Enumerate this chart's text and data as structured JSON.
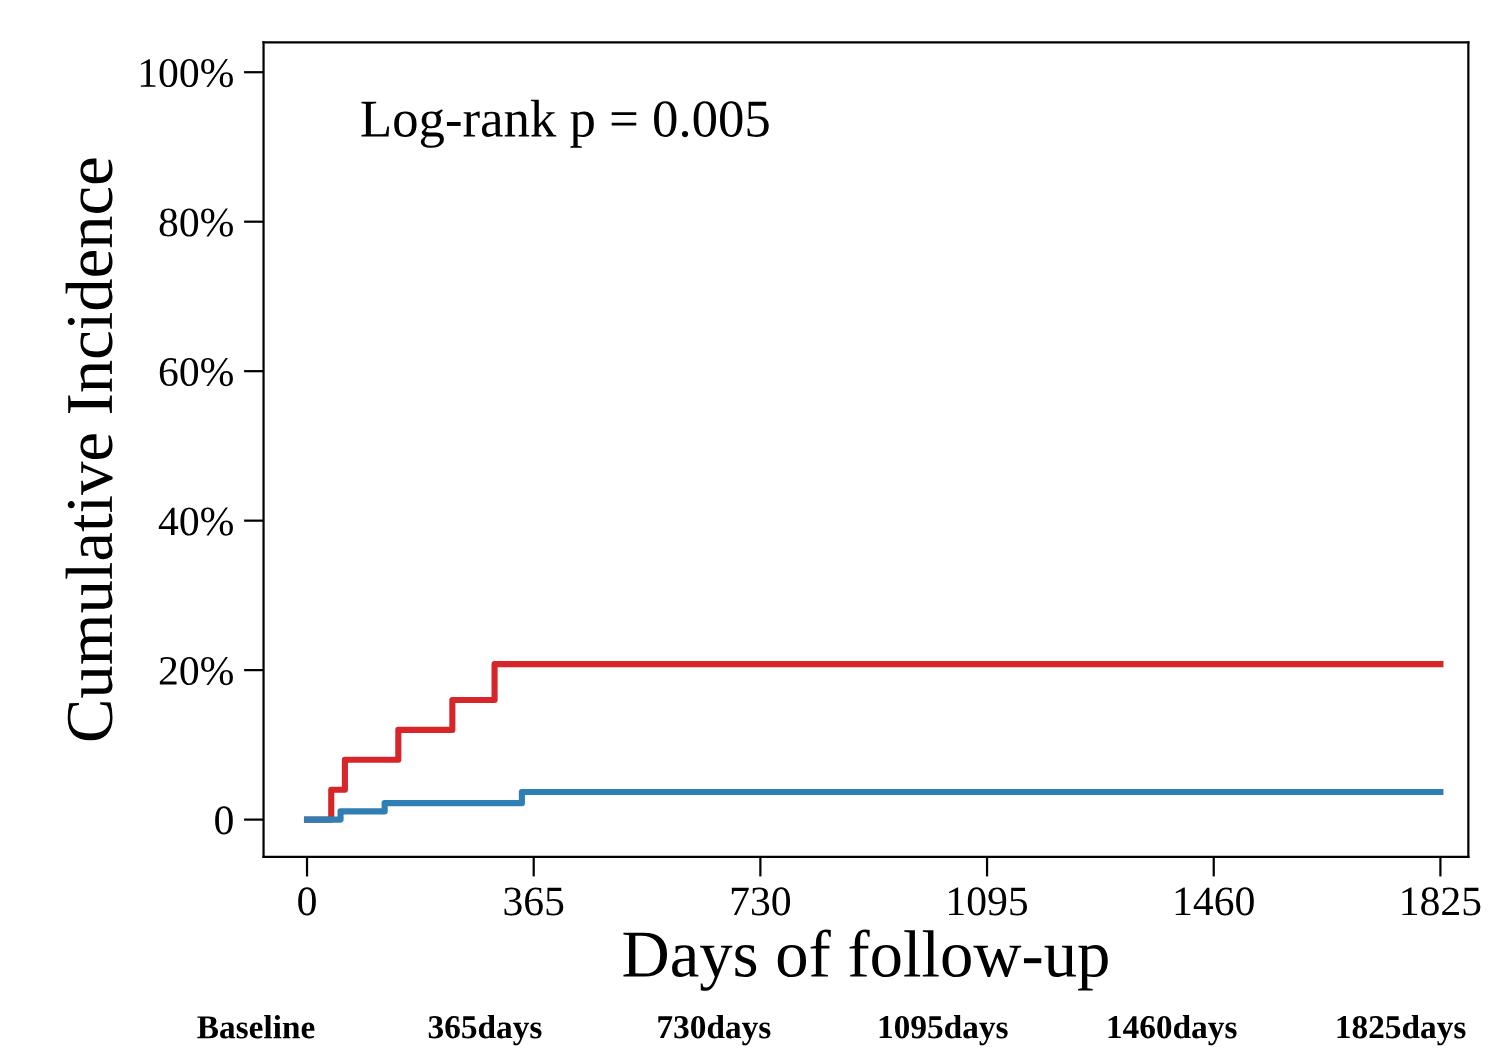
{
  "chart_data": {
    "type": "step",
    "xlabel": "Days of follow-up",
    "ylabel": "Cumulative Incidence",
    "series": [
      {
        "color": "#d7262a",
        "x": [
          0,
          39,
          61,
          147,
          234,
          302,
          1825
        ],
        "values": [
          0,
          4,
          8,
          12,
          16,
          20.8,
          20.8
        ]
      },
      {
        "color": "#2f7fb5",
        "x": [
          0,
          54,
          125,
          346,
          1825
        ],
        "values": [
          0,
          1.1,
          2.2,
          3.7,
          3.7
        ]
      }
    ],
    "xlim": [
      -70,
      1870
    ],
    "xticks": [
      0,
      365,
      730,
      1095,
      1460,
      1825
    ],
    "ylim": [
      -5,
      104
    ],
    "yticks": [
      {
        "value": 0,
        "label": "0"
      },
      {
        "value": 20,
        "label": "20%"
      },
      {
        "value": 40,
        "label": "40%"
      },
      {
        "value": 60,
        "label": "60%"
      },
      {
        "value": 80,
        "label": "80%"
      },
      {
        "value": 100,
        "label": "100%"
      }
    ],
    "grid": false,
    "legend": false,
    "annotations": [
      "Log-rank p = 0.005",
      "Baseline",
      "365days",
      "730days",
      "1095days",
      "1460days",
      "1825days"
    ]
  }
}
